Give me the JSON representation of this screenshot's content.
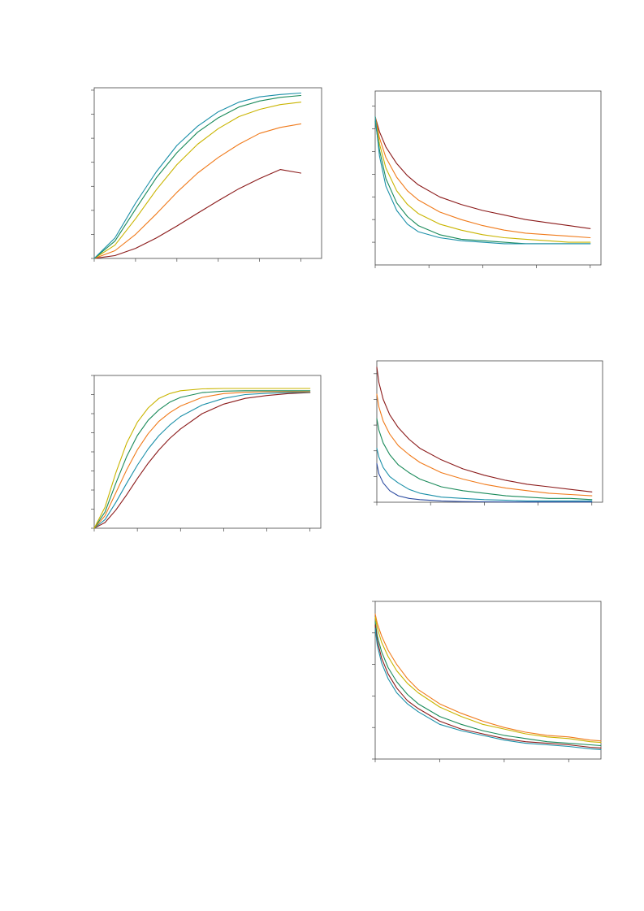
{
  "colors": {
    "dark_red": "#8b1a1a",
    "orange": "#f07a1a",
    "yellow": "#c9b400",
    "green": "#1a8a5a",
    "teal": "#1a8fa8",
    "blue": "#2a4aa0",
    "frame": "#444444"
  },
  "chart_data": [
    {
      "id": "top-left",
      "type": "line",
      "title": "",
      "xlabel": "",
      "ylabel": "",
      "xlim": [
        0,
        1.1
      ],
      "ylim": [
        0,
        7.1
      ],
      "xticks": [
        0,
        0.2,
        0.4,
        0.6,
        0.8,
        1.0
      ],
      "yticks": [
        0,
        1,
        2,
        3,
        4,
        5,
        6,
        7
      ],
      "tick_labels_visible": false,
      "grid": false,
      "x": [
        0,
        0.1,
        0.2,
        0.3,
        0.4,
        0.5,
        0.6,
        0.7,
        0.8,
        0.9,
        1.0
      ],
      "series": [
        {
          "color": "dark_red",
          "values": [
            0,
            0.12,
            0.42,
            0.85,
            1.35,
            1.88,
            2.4,
            2.9,
            3.32,
            3.7,
            3.55
          ]
        },
        {
          "color": "orange",
          "values": [
            0,
            0.32,
            1.0,
            1.85,
            2.75,
            3.55,
            4.2,
            4.75,
            5.2,
            5.45,
            5.6
          ]
        },
        {
          "color": "yellow",
          "values": [
            0,
            0.55,
            1.65,
            2.85,
            3.9,
            4.75,
            5.4,
            5.9,
            6.2,
            6.4,
            6.5
          ]
        },
        {
          "color": "green",
          "values": [
            0,
            0.72,
            2.05,
            3.35,
            4.4,
            5.25,
            5.85,
            6.3,
            6.55,
            6.7,
            6.78
          ]
        },
        {
          "color": "teal",
          "values": [
            0,
            0.85,
            2.3,
            3.6,
            4.7,
            5.5,
            6.1,
            6.5,
            6.72,
            6.82,
            6.88
          ]
        }
      ]
    },
    {
      "id": "top-right",
      "type": "line",
      "title": "",
      "xlabel": "",
      "ylabel": "",
      "xlim": [
        0,
        1.05
      ],
      "ylim": [
        0,
        1.15
      ],
      "xticks": [
        0,
        0.25,
        0.5,
        0.75,
        1.0
      ],
      "yticks": [
        0.15,
        0.3,
        0.45,
        0.6,
        0.75,
        0.9,
        1.05
      ],
      "tick_labels_visible": false,
      "grid": false,
      "x": [
        0,
        0.02,
        0.05,
        0.1,
        0.15,
        0.2,
        0.3,
        0.4,
        0.5,
        0.6,
        0.7,
        0.8,
        0.9,
        1.0
      ],
      "series": [
        {
          "color": "dark_red",
          "values": [
            0.98,
            0.88,
            0.78,
            0.67,
            0.59,
            0.53,
            0.45,
            0.4,
            0.36,
            0.33,
            0.3,
            0.28,
            0.26,
            0.24
          ]
        },
        {
          "color": "orange",
          "values": [
            0.98,
            0.84,
            0.71,
            0.58,
            0.49,
            0.43,
            0.35,
            0.3,
            0.26,
            0.23,
            0.21,
            0.2,
            0.19,
            0.18
          ]
        },
        {
          "color": "yellow",
          "values": [
            0.98,
            0.8,
            0.64,
            0.49,
            0.4,
            0.34,
            0.27,
            0.23,
            0.2,
            0.18,
            0.17,
            0.16,
            0.15,
            0.15
          ]
        },
        {
          "color": "green",
          "values": [
            0.95,
            0.76,
            0.57,
            0.41,
            0.32,
            0.26,
            0.2,
            0.17,
            0.16,
            0.15,
            0.14,
            0.14,
            0.14,
            0.14
          ]
        },
        {
          "color": "teal",
          "values": [
            0.98,
            0.72,
            0.52,
            0.36,
            0.27,
            0.22,
            0.18,
            0.16,
            0.15,
            0.14,
            0.14,
            0.14,
            0.14,
            0.14
          ]
        }
      ]
    },
    {
      "id": "middle-left",
      "type": "line",
      "title": "",
      "xlabel": "",
      "ylabel": "",
      "xlim": [
        0,
        1.05
      ],
      "ylim": [
        0,
        8
      ],
      "xticks": [
        0,
        0.2,
        0.4,
        0.6,
        0.8,
        1.0
      ],
      "yticks": [
        0,
        1,
        2,
        3,
        4,
        5,
        6,
        7,
        8
      ],
      "tick_labels_visible": false,
      "grid": false,
      "x": [
        0,
        0.05,
        0.1,
        0.15,
        0.2,
        0.25,
        0.3,
        0.35,
        0.4,
        0.5,
        0.6,
        0.7,
        0.8,
        0.9,
        1.0
      ],
      "series": [
        {
          "color": "dark_red",
          "values": [
            0,
            0.3,
            0.95,
            1.75,
            2.6,
            3.4,
            4.1,
            4.7,
            5.2,
            6.0,
            6.5,
            6.8,
            6.95,
            7.05,
            7.1
          ]
        },
        {
          "color": "teal",
          "values": [
            0,
            0.45,
            1.35,
            2.35,
            3.3,
            4.15,
            4.85,
            5.4,
            5.85,
            6.45,
            6.8,
            7.0,
            7.07,
            7.1,
            7.12
          ]
        },
        {
          "color": "orange",
          "values": [
            0,
            0.65,
            1.85,
            3.05,
            4.1,
            4.95,
            5.6,
            6.05,
            6.4,
            6.85,
            7.05,
            7.12,
            7.15,
            7.15,
            7.15
          ]
        },
        {
          "color": "green",
          "values": [
            0,
            0.85,
            2.35,
            3.75,
            4.85,
            5.65,
            6.2,
            6.6,
            6.85,
            7.1,
            7.18,
            7.2,
            7.2,
            7.2,
            7.2
          ]
        },
        {
          "color": "yellow",
          "values": [
            0,
            1.1,
            2.9,
            4.45,
            5.55,
            6.3,
            6.8,
            7.05,
            7.2,
            7.3,
            7.32,
            7.32,
            7.32,
            7.32,
            7.32
          ]
        }
      ]
    },
    {
      "id": "middle-right",
      "type": "line",
      "title": "",
      "xlabel": "",
      "ylabel": "",
      "xlim": [
        0,
        1.05
      ],
      "ylim": [
        0,
        1.1
      ],
      "xticks": [
        0,
        0.25,
        0.5,
        0.75,
        1.0
      ],
      "yticks": [
        0,
        0.2,
        0.4,
        0.6,
        0.8,
        1.0
      ],
      "tick_labels_visible": false,
      "grid": false,
      "x": [
        0,
        0.01,
        0.03,
        0.06,
        0.1,
        0.15,
        0.2,
        0.3,
        0.4,
        0.5,
        0.6,
        0.7,
        0.8,
        0.9,
        1.0
      ],
      "series": [
        {
          "color": "dark_red",
          "values": [
            1.05,
            0.93,
            0.8,
            0.68,
            0.58,
            0.49,
            0.42,
            0.33,
            0.26,
            0.21,
            0.17,
            0.14,
            0.12,
            0.1,
            0.08
          ]
        },
        {
          "color": "orange",
          "values": [
            0.84,
            0.74,
            0.63,
            0.53,
            0.44,
            0.37,
            0.31,
            0.23,
            0.18,
            0.14,
            0.11,
            0.09,
            0.07,
            0.06,
            0.05
          ]
        },
        {
          "color": "green",
          "values": [
            0.65,
            0.56,
            0.46,
            0.37,
            0.29,
            0.23,
            0.18,
            0.12,
            0.09,
            0.07,
            0.05,
            0.04,
            0.03,
            0.03,
            0.02
          ]
        },
        {
          "color": "teal",
          "values": [
            0.42,
            0.35,
            0.27,
            0.2,
            0.15,
            0.1,
            0.07,
            0.04,
            0.03,
            0.02,
            0.015,
            0.01,
            0.01,
            0.01,
            0.01
          ]
        },
        {
          "color": "blue",
          "values": [
            0.3,
            0.22,
            0.15,
            0.09,
            0.05,
            0.03,
            0.02,
            0.01,
            0.005,
            0.003,
            0.002,
            0.002,
            0.002,
            0.002,
            0.002
          ]
        }
      ]
    },
    {
      "id": "bottom-right",
      "type": "line",
      "title": "",
      "xlabel": "",
      "ylabel": "",
      "xlim": [
        0,
        1.05
      ],
      "ylim": [
        0,
        1.0
      ],
      "xticks": [
        0,
        0.3,
        0.6,
        0.9
      ],
      "yticks": [
        0,
        0.2,
        0.4,
        0.6,
        0.8,
        1.0
      ],
      "tick_labels_visible": false,
      "grid": false,
      "x": [
        0,
        0.01,
        0.03,
        0.06,
        0.1,
        0.15,
        0.2,
        0.3,
        0.4,
        0.5,
        0.6,
        0.7,
        0.8,
        0.9,
        1.0,
        1.05
      ],
      "series": [
        {
          "color": "orange",
          "values": [
            0.92,
            0.86,
            0.78,
            0.69,
            0.6,
            0.51,
            0.44,
            0.35,
            0.29,
            0.24,
            0.2,
            0.17,
            0.15,
            0.14,
            0.12,
            0.115
          ]
        },
        {
          "color": "yellow",
          "values": [
            0.9,
            0.83,
            0.74,
            0.65,
            0.56,
            0.48,
            0.42,
            0.33,
            0.27,
            0.22,
            0.19,
            0.16,
            0.14,
            0.13,
            0.11,
            0.105
          ]
        },
        {
          "color": "green",
          "values": [
            0.87,
            0.78,
            0.68,
            0.58,
            0.49,
            0.41,
            0.35,
            0.27,
            0.22,
            0.18,
            0.15,
            0.13,
            0.11,
            0.1,
            0.09,
            0.085
          ]
        },
        {
          "color": "dark_red",
          "values": [
            0.85,
            0.75,
            0.64,
            0.54,
            0.45,
            0.37,
            0.32,
            0.24,
            0.19,
            0.16,
            0.13,
            0.11,
            0.1,
            0.09,
            0.075,
            0.07
          ]
        },
        {
          "color": "teal",
          "values": [
            0.83,
            0.72,
            0.61,
            0.51,
            0.42,
            0.35,
            0.3,
            0.22,
            0.18,
            0.15,
            0.12,
            0.1,
            0.09,
            0.08,
            0.065,
            0.06
          ]
        }
      ]
    }
  ]
}
